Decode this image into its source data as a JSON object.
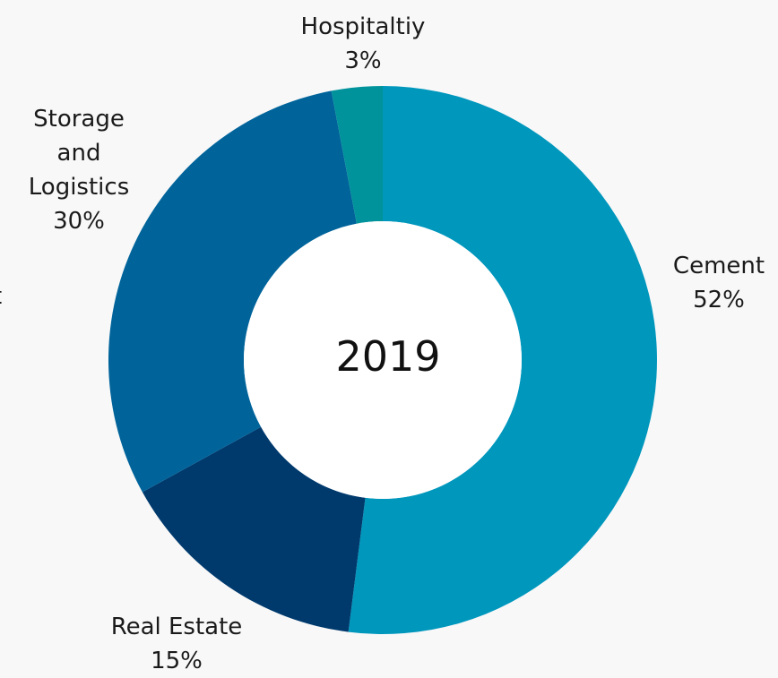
{
  "chart_data": {
    "type": "pie",
    "center_label": "2019",
    "categories": [
      "Cement",
      "Real Estate",
      "Storage and Logistics",
      "Hospitaltiy"
    ],
    "values": [
      52,
      15,
      30,
      3
    ],
    "value_labels": [
      "52%",
      "15%",
      "30%",
      "3%"
    ],
    "colors": [
      "#0097bd",
      "#003a6d",
      "#00649b",
      "#00939b"
    ],
    "clipped_label": "t"
  }
}
